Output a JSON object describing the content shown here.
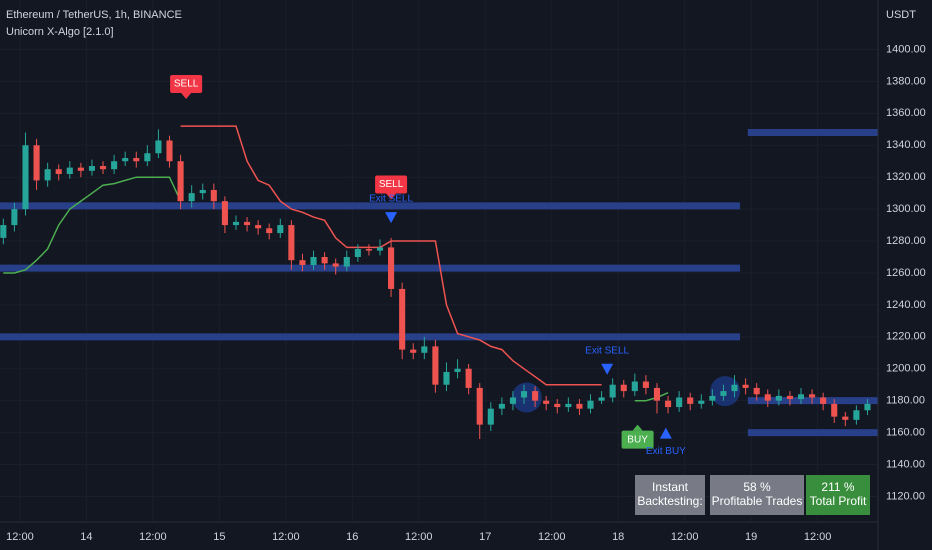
{
  "header": {
    "symbol": "Ethereum / TetherUS, 1h, BINANCE",
    "indicator": "Unicorn X-Algo [2.1.0]"
  },
  "chart_data": {
    "type": "candlestick",
    "y_unit": "USDT",
    "xlim": [
      8.4,
      166.9
    ],
    "ylim": [
      1104,
      1431
    ],
    "xticks": [
      {
        "value": 12,
        "label": "12:00"
      },
      {
        "value": 24,
        "label": "14"
      },
      {
        "value": 36,
        "label": "12:00"
      },
      {
        "value": 48,
        "label": "15"
      },
      {
        "value": 60,
        "label": "12:00"
      },
      {
        "value": 72,
        "label": "16"
      },
      {
        "value": 84,
        "label": "12:00"
      },
      {
        "value": 96,
        "label": "17"
      },
      {
        "value": 108,
        "label": "12:00"
      },
      {
        "value": 120,
        "label": "18"
      },
      {
        "value": 132,
        "label": "12:00"
      },
      {
        "value": 144,
        "label": "19"
      },
      {
        "value": 156,
        "label": "12:00"
      }
    ],
    "yticks": [
      {
        "value": 1120,
        "label": "1120.00"
      },
      {
        "value": 1140,
        "label": "1140.00"
      },
      {
        "value": 1160,
        "label": "1160.00"
      },
      {
        "value": 1180,
        "label": "1180.00"
      },
      {
        "value": 1200,
        "label": "1200.00"
      },
      {
        "value": 1220,
        "label": "1220.00"
      },
      {
        "value": 1240,
        "label": "1240.00"
      },
      {
        "value": 1260,
        "label": "1260.00"
      },
      {
        "value": 1280,
        "label": "1280.00"
      },
      {
        "value": 1300,
        "label": "1300.00"
      },
      {
        "value": 1320,
        "label": "1320.00"
      },
      {
        "value": 1340,
        "label": "1340.00"
      },
      {
        "value": 1360,
        "label": "1360.00"
      },
      {
        "value": 1380,
        "label": "1380.00"
      },
      {
        "value": 1400,
        "label": "1400.00"
      }
    ],
    "grid": true,
    "up_color": "#26a69a",
    "down_color": "#ef5350",
    "x": [
      9,
      11,
      13,
      15,
      17,
      19,
      21,
      23,
      25,
      27,
      29,
      31,
      33,
      35,
      37,
      39,
      41,
      43,
      45,
      47,
      49,
      51,
      53,
      55,
      57,
      59,
      61,
      63,
      65,
      67,
      69,
      71,
      73,
      75,
      77,
      79,
      81,
      83,
      85,
      87,
      89,
      91,
      93,
      95,
      97,
      99,
      101,
      103,
      105,
      107,
      109,
      111,
      113,
      115,
      117,
      119,
      121,
      123,
      125,
      127,
      129,
      131,
      133,
      135,
      137,
      139,
      141,
      143,
      145,
      147,
      149,
      151,
      153,
      155,
      157,
      159,
      161,
      163,
      165
    ],
    "open": [
      1282,
      1290,
      1300,
      1340,
      1318,
      1325,
      1322,
      1326,
      1324,
      1327,
      1325,
      1330,
      1332,
      1330,
      1335,
      1343,
      1330,
      1305,
      1310,
      1312,
      1305,
      1290,
      1292,
      1290,
      1288,
      1285,
      1290,
      1268,
      1265,
      1270,
      1266,
      1264,
      1270,
      1275,
      1274,
      1276,
      1250,
      1212,
      1210,
      1214,
      1190,
      1198,
      1200,
      1188,
      1165,
      1175,
      1178,
      1182,
      1186,
      1180,
      1178,
      1176,
      1178,
      1175,
      1180,
      1182,
      1190,
      1186,
      1192,
      1188,
      1180,
      1176,
      1182,
      1178,
      1180,
      1183,
      1186,
      1190,
      1188,
      1184,
      1180,
      1183,
      1181,
      1184,
      1182,
      1178,
      1170,
      1168,
      1174
    ],
    "high": [
      1294,
      1304,
      1348,
      1344,
      1329,
      1328,
      1330,
      1329,
      1331,
      1330,
      1334,
      1336,
      1336,
      1340,
      1350,
      1346,
      1334,
      1315,
      1316,
      1316,
      1308,
      1296,
      1295,
      1293,
      1291,
      1294,
      1293,
      1272,
      1274,
      1273,
      1269,
      1274,
      1278,
      1278,
      1281,
      1282,
      1254,
      1216,
      1220,
      1218,
      1204,
      1206,
      1203,
      1191,
      1179,
      1182,
      1186,
      1190,
      1189,
      1183,
      1181,
      1182,
      1181,
      1184,
      1186,
      1194,
      1193,
      1197,
      1196,
      1191,
      1183,
      1186,
      1185,
      1184,
      1187,
      1190,
      1196,
      1194,
      1191,
      1187,
      1187,
      1186,
      1188,
      1187,
      1185,
      1181,
      1173,
      1177,
      1181
    ],
    "low": [
      1278,
      1286,
      1296,
      1312,
      1314,
      1318,
      1319,
      1320,
      1321,
      1322,
      1322,
      1327,
      1326,
      1327,
      1332,
      1326,
      1300,
      1301,
      1306,
      1300,
      1285,
      1287,
      1286,
      1284,
      1281,
      1282,
      1262,
      1261,
      1262,
      1262,
      1259,
      1261,
      1267,
      1271,
      1271,
      1245,
      1206,
      1206,
      1206,
      1185,
      1186,
      1194,
      1184,
      1156,
      1161,
      1171,
      1174,
      1178,
      1176,
      1174,
      1172,
      1173,
      1171,
      1172,
      1178,
      1179,
      1182,
      1183,
      1184,
      1172,
      1172,
      1173,
      1174,
      1175,
      1177,
      1180,
      1182,
      1184,
      1180,
      1176,
      1177,
      1177,
      1178,
      1178,
      1174,
      1166,
      1164,
      1165,
      1171
    ],
    "close": [
      1290,
      1300,
      1340,
      1318,
      1325,
      1322,
      1326,
      1324,
      1327,
      1325,
      1330,
      1332,
      1330,
      1335,
      1343,
      1330,
      1305,
      1310,
      1312,
      1305,
      1290,
      1292,
      1290,
      1288,
      1285,
      1290,
      1268,
      1265,
      1270,
      1266,
      1264,
      1270,
      1275,
      1274,
      1276,
      1250,
      1212,
      1210,
      1214,
      1190,
      1198,
      1200,
      1188,
      1165,
      1175,
      1178,
      1182,
      1186,
      1180,
      1178,
      1176,
      1178,
      1175,
      1180,
      1182,
      1190,
      1186,
      1192,
      1188,
      1180,
      1176,
      1182,
      1178,
      1180,
      1183,
      1186,
      1190,
      1188,
      1184,
      1180,
      1183,
      1181,
      1184,
      1182,
      1178,
      1170,
      1168,
      1174,
      1178
    ],
    "series": [
      {
        "color": "#4caf50",
        "values": [
          1260,
          1260,
          1262,
          1268,
          1275,
          1290,
          1300,
          1305,
          1310,
          1315,
          1316,
          1318,
          1320,
          1320,
          1320,
          1320,
          1305,
          null,
          null,
          null,
          null,
          null,
          null,
          null,
          null,
          null,
          null,
          null,
          null,
          null,
          null,
          null,
          null,
          null,
          null,
          null,
          null,
          null,
          null,
          null,
          null,
          null,
          null,
          null,
          null,
          null,
          null,
          null,
          null,
          null,
          null,
          null,
          null,
          null,
          null,
          null,
          null,
          1180,
          1180,
          1182,
          1185,
          null,
          null,
          null,
          null,
          null,
          null,
          null,
          null,
          null,
          null,
          null,
          null,
          null,
          null,
          null,
          null,
          null,
          null
        ]
      },
      {
        "color": "#ef5350",
        "values": [
          null,
          null,
          null,
          null,
          null,
          null,
          null,
          null,
          null,
          null,
          null,
          null,
          null,
          null,
          null,
          null,
          1352,
          1352,
          1352,
          1352,
          1352,
          1352,
          1330,
          1318,
          1315,
          1305,
          1300,
          1298,
          1295,
          1293,
          1282,
          1276,
          1276,
          1276,
          1276,
          1280,
          1280,
          1280,
          1280,
          1280,
          1240,
          1222,
          1220,
          1218,
          1214,
          1212,
          1205,
          1200,
          1195,
          1190,
          1190,
          1190,
          1190,
          1190,
          1190,
          null,
          null,
          null,
          null,
          null,
          null,
          null,
          null,
          null,
          null,
          null,
          null,
          null,
          null,
          null,
          null,
          null,
          null,
          null,
          null,
          null,
          null,
          null,
          null
        ]
      }
    ],
    "levels": [
      {
        "value": 1302,
        "from": 8.4,
        "to": 142
      },
      {
        "value": 1263,
        "from": 8.4,
        "to": 142
      },
      {
        "value": 1220,
        "from": 8.4,
        "to": 142
      },
      {
        "value": 1348,
        "from": 143.4,
        "to": 166.9
      },
      {
        "value": 1180,
        "from": 143.4,
        "to": 166.9
      },
      {
        "value": 1160,
        "from": 143.4,
        "to": 166.9
      }
    ],
    "level_color": "#283f8a",
    "highlights": [
      {
        "x": 103.5,
        "y": 1182
      },
      {
        "x": 139.3,
        "y": 1186
      }
    ],
    "signals": [
      {
        "label": "SELL",
        "x": 42,
        "y": 1369,
        "color": "#f23645"
      },
      {
        "label": "SELL",
        "x": 79,
        "y": 1306,
        "color": "#f23645"
      },
      {
        "label": "BUY",
        "x": 123.5,
        "y": 1165,
        "color": "#4caf50"
      }
    ],
    "exits": [
      {
        "label": "Exit SELL",
        "x": 79,
        "y": 1295,
        "direction": "down"
      },
      {
        "label": "Exit SELL",
        "x": 118,
        "y": 1200,
        "direction": "down"
      },
      {
        "label": "Exit BUY",
        "x": 128.6,
        "y": 1160,
        "direction": "up"
      }
    ],
    "exit_color": "#2962ff"
  },
  "stats": [
    {
      "lines": [
        "Instant",
        "Backtesting:"
      ],
      "color": "#787b86"
    },
    {
      "lines": [
        "58 %",
        "Profitable Trades"
      ],
      "color": "#787b86"
    },
    {
      "lines": [
        "211 %",
        "Total Profit"
      ],
      "color": "#388e3c"
    }
  ]
}
